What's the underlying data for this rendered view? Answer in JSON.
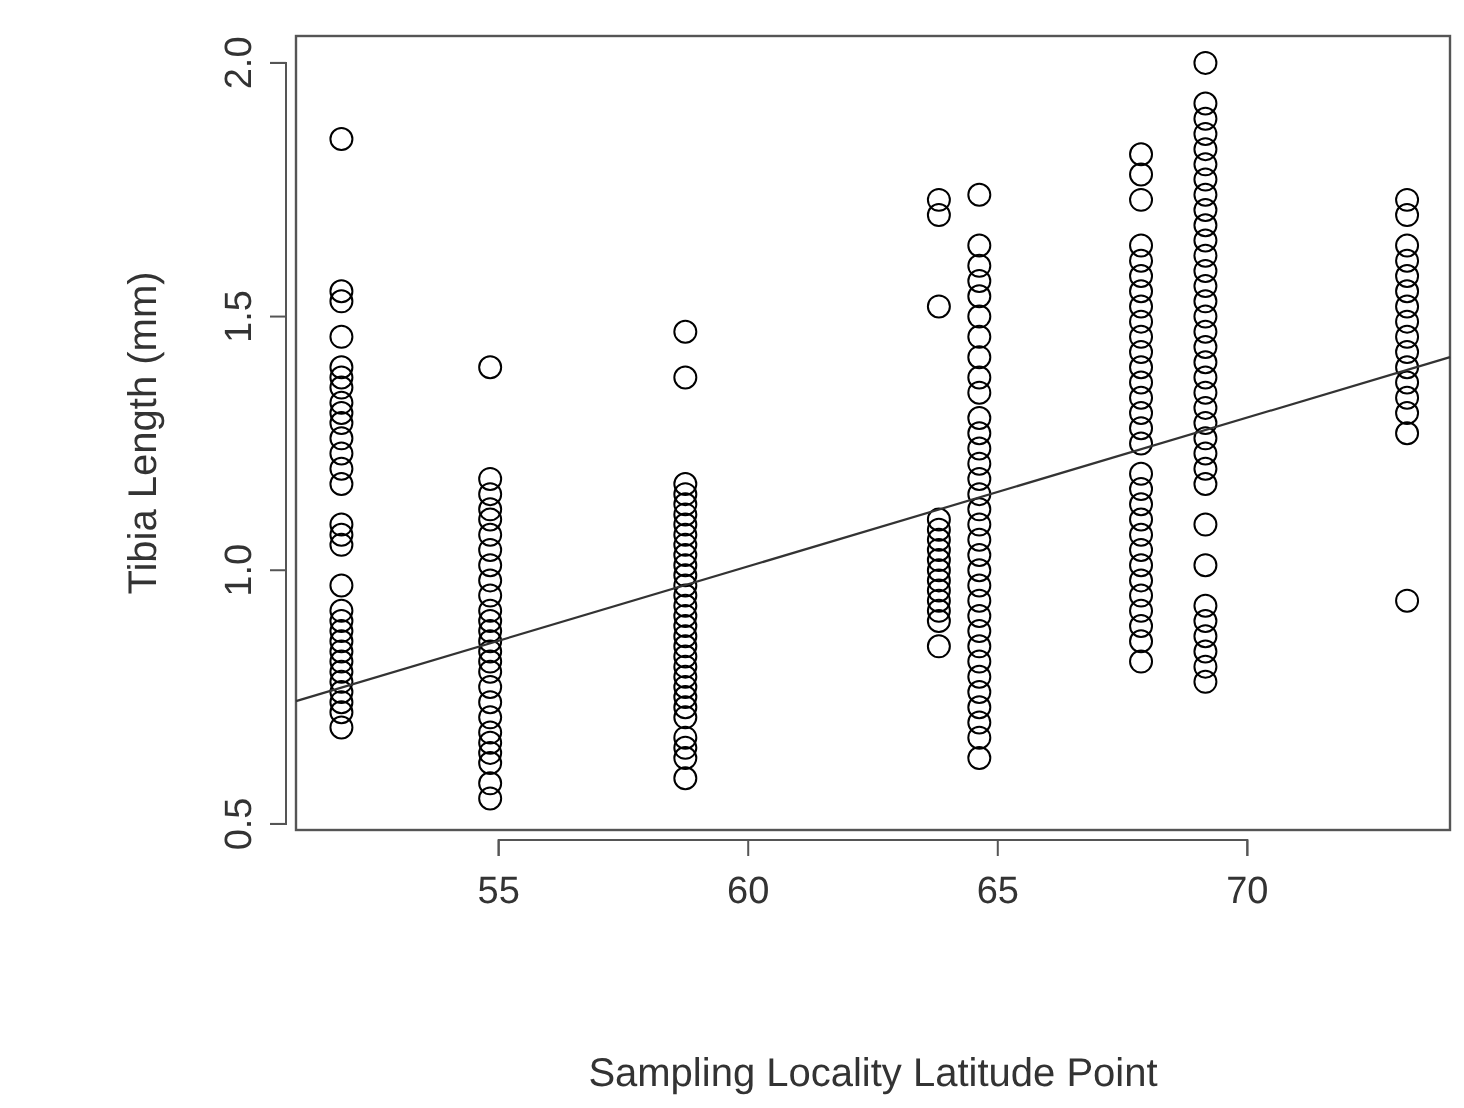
{
  "chart_data": {
    "type": "scatter",
    "xlabel": "Sampling Locality Latitude Point",
    "ylabel": "Tibia Length (mm)",
    "xlim": [
      50.94,
      74.06
    ],
    "ylim": [
      0.488,
      2.053
    ],
    "xticks": [
      55,
      60,
      65,
      70
    ],
    "yticks": [
      0.5,
      {
        "value": 1,
        "label": "1.0"
      },
      1.5,
      {
        "value": 2,
        "label": "2.0"
      }
    ],
    "marker": "circle",
    "series": [
      {
        "color": "#000000",
        "x": [
          51.85,
          51.85,
          51.85,
          51.85,
          51.85,
          51.85,
          51.85,
          51.85,
          51.85,
          51.85,
          51.85,
          51.85,
          51.85,
          51.85,
          51.85,
          51.85,
          51.85,
          51.85,
          51.85,
          51.85,
          51.85,
          51.85,
          51.85,
          51.85,
          51.85,
          51.85,
          51.85,
          51.85,
          51.85,
          51.85
        ],
        "values": [
          1.85,
          1.55,
          1.53,
          1.46,
          1.4,
          1.38,
          1.36,
          1.33,
          1.31,
          1.29,
          1.26,
          1.23,
          1.2,
          1.17,
          1.09,
          1.07,
          1.05,
          0.97,
          0.92,
          0.9,
          0.88,
          0.86,
          0.84,
          0.82,
          0.8,
          0.78,
          0.76,
          0.74,
          0.72,
          0.69
        ]
      },
      {
        "color": "#000000",
        "x": [
          54.83,
          54.83,
          54.83,
          54.83,
          54.83,
          54.83,
          54.83,
          54.83,
          54.83,
          54.83,
          54.83,
          54.83,
          54.83,
          54.83,
          54.83,
          54.83,
          54.83,
          54.83,
          54.83,
          54.83,
          54.83,
          54.83,
          54.83,
          54.83,
          54.83,
          54.83
        ],
        "values": [
          1.4,
          1.18,
          1.15,
          1.12,
          1.1,
          1.07,
          1.04,
          1.01,
          0.98,
          0.95,
          0.92,
          0.9,
          0.88,
          0.86,
          0.84,
          0.82,
          0.8,
          0.77,
          0.74,
          0.71,
          0.68,
          0.66,
          0.64,
          0.62,
          0.58,
          0.55
        ]
      },
      {
        "color": "#000000",
        "x": [
          58.74,
          58.74,
          58.74,
          58.74,
          58.74,
          58.74,
          58.74,
          58.74,
          58.74,
          58.74,
          58.74,
          58.74,
          58.74,
          58.74,
          58.74,
          58.74,
          58.74,
          58.74,
          58.74,
          58.74,
          58.74,
          58.74,
          58.74,
          58.74,
          58.74,
          58.74,
          58.74,
          58.74,
          58.74,
          58.74
        ],
        "values": [
          1.47,
          1.38,
          1.17,
          1.15,
          1.13,
          1.11,
          1.09,
          1.07,
          1.05,
          1.03,
          1.01,
          0.99,
          0.97,
          0.95,
          0.93,
          0.91,
          0.89,
          0.87,
          0.85,
          0.83,
          0.81,
          0.79,
          0.77,
          0.75,
          0.73,
          0.71,
          0.67,
          0.65,
          0.63,
          0.59
        ]
      },
      {
        "color": "#000000",
        "x": [
          63.82,
          63.82,
          63.82,
          63.82,
          63.82,
          63.82,
          63.82,
          63.82,
          63.82,
          63.82,
          63.82,
          63.82,
          63.82,
          63.82,
          63.82
        ],
        "values": [
          1.73,
          1.7,
          1.52,
          1.1,
          1.08,
          1.06,
          1.04,
          1.02,
          1.0,
          0.98,
          0.96,
          0.94,
          0.92,
          0.9,
          0.85
        ]
      },
      {
        "color": "#000000",
        "x": [
          64.63,
          64.63,
          64.63,
          64.63,
          64.63,
          64.63,
          64.63,
          64.63,
          64.63,
          64.63,
          64.63,
          64.63,
          64.63,
          64.63,
          64.63,
          64.63,
          64.63,
          64.63,
          64.63,
          64.63,
          64.63,
          64.63,
          64.63,
          64.63,
          64.63,
          64.63,
          64.63,
          64.63,
          64.63,
          64.63,
          64.63,
          64.63,
          64.63
        ],
        "values": [
          1.74,
          1.64,
          1.6,
          1.57,
          1.54,
          1.5,
          1.46,
          1.42,
          1.38,
          1.35,
          1.3,
          1.27,
          1.24,
          1.21,
          1.18,
          1.15,
          1.12,
          1.09,
          1.06,
          1.03,
          1.0,
          0.97,
          0.94,
          0.91,
          0.88,
          0.85,
          0.82,
          0.79,
          0.76,
          0.73,
          0.7,
          0.67,
          0.63
        ]
      },
      {
        "color": "#000000",
        "x": [
          67.87,
          67.87,
          67.87,
          67.87,
          67.87,
          67.87,
          67.87,
          67.87,
          67.87,
          67.87,
          67.87,
          67.87,
          67.87,
          67.87,
          67.87,
          67.87,
          67.87,
          67.87,
          67.87,
          67.87,
          67.87,
          67.87,
          67.87,
          67.87,
          67.87,
          67.87,
          67.87,
          67.87,
          67.87,
          67.87
        ],
        "values": [
          1.82,
          1.78,
          1.73,
          1.64,
          1.61,
          1.58,
          1.55,
          1.52,
          1.49,
          1.46,
          1.43,
          1.4,
          1.37,
          1.34,
          1.31,
          1.28,
          1.25,
          1.19,
          1.16,
          1.13,
          1.1,
          1.07,
          1.04,
          1.01,
          0.98,
          0.95,
          0.92,
          0.89,
          0.86,
          0.82
        ]
      },
      {
        "color": "#000000",
        "x": [
          69.16,
          69.16,
          69.16,
          69.16,
          69.16,
          69.16,
          69.16,
          69.16,
          69.16,
          69.16,
          69.16,
          69.16,
          69.16,
          69.16,
          69.16,
          69.16,
          69.16,
          69.16,
          69.16,
          69.16,
          69.16,
          69.16,
          69.16,
          69.16,
          69.16,
          69.16,
          69.16,
          69.16,
          69.16,
          69.16,
          69.16,
          69.16,
          69.16,
          69.16,
          69.16
        ],
        "values": [
          2.0,
          1.92,
          1.89,
          1.86,
          1.83,
          1.8,
          1.77,
          1.74,
          1.71,
          1.68,
          1.65,
          1.62,
          1.59,
          1.56,
          1.53,
          1.5,
          1.47,
          1.44,
          1.41,
          1.38,
          1.35,
          1.32,
          1.29,
          1.26,
          1.23,
          1.2,
          1.17,
          1.09,
          1.01,
          0.93,
          0.9,
          0.87,
          0.84,
          0.81,
          0.78
        ]
      },
      {
        "color": "#000000",
        "x": [
          73.2,
          73.2,
          73.2,
          73.2,
          73.2,
          73.2,
          73.2,
          73.2,
          73.2,
          73.2,
          73.2,
          73.2,
          73.2,
          73.2,
          73.2,
          73.2
        ],
        "values": [
          1.73,
          1.7,
          1.64,
          1.61,
          1.58,
          1.55,
          1.52,
          1.49,
          1.46,
          1.43,
          1.4,
          1.37,
          1.34,
          1.31,
          1.27,
          0.94
        ]
      },
      {
        "type": "line",
        "color": "#333333",
        "marker": "none",
        "x": [
          50.94,
          74.06
        ],
        "values": [
          0.742,
          1.42
        ]
      }
    ]
  }
}
